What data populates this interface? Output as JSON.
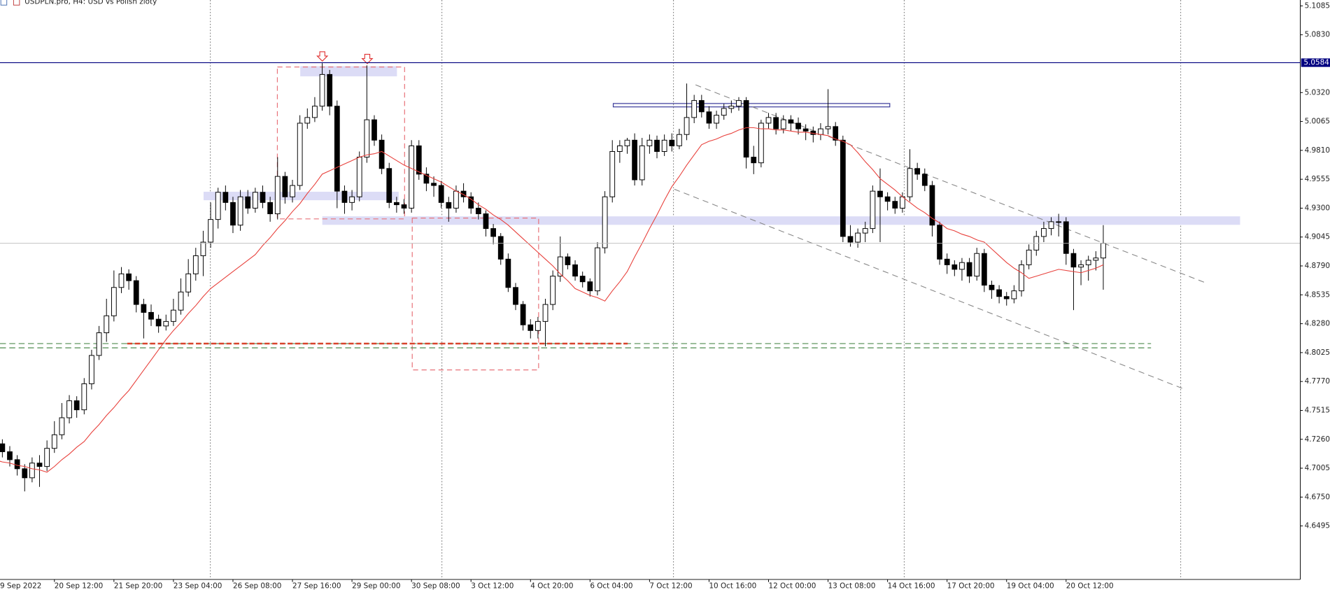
{
  "chart_data": {
    "type": "candlestick",
    "title": "USDPLN.pro, H4:  USD vs Polish zloty",
    "ylim": [
      4.6023,
      5.1137
    ],
    "yticks": [
      5.1085,
      {
        "value": 5.083,
        "label": "5.0830"
      },
      {
        "value": 5.032,
        "label": "5.0320"
      },
      5.0065,
      {
        "value": 4.981,
        "label": "4.9810"
      },
      4.9555,
      {
        "value": 4.93,
        "label": "4.9300"
      },
      4.9045,
      {
        "value": 4.879,
        "label": "4.8790"
      },
      4.8535,
      {
        "value": 4.828,
        "label": "4.8280"
      },
      4.8025,
      {
        "value": 4.777,
        "label": "4.7770"
      },
      4.7515,
      {
        "value": 4.726,
        "label": "4.7260"
      },
      4.7005,
      {
        "value": 4.675,
        "label": "4.6750"
      },
      4.6495
    ],
    "price_lines": [
      {
        "value": 5.0584,
        "color": "#000080"
      }
    ],
    "categories": [
      "9 Sep 2022",
      null,
      null,
      null,
      null,
      null,
      null,
      null,
      "20 Sep 12:00",
      null,
      null,
      null,
      null,
      null,
      null,
      null,
      "21 Sep 20:00",
      null,
      null,
      null,
      null,
      null,
      null,
      null,
      "23 Sep 04:00",
      null,
      null,
      null,
      null,
      null,
      null,
      null,
      "26 Sep 08:00",
      null,
      null,
      null,
      null,
      null,
      null,
      null,
      "27 Sep 16:00",
      null,
      null,
      null,
      null,
      null,
      null,
      null,
      "29 Sep 00:00",
      null,
      null,
      null,
      null,
      null,
      null,
      null,
      "30 Sep 08:00",
      null,
      null,
      null,
      null,
      null,
      null,
      null,
      "3 Oct 12:00",
      null,
      null,
      null,
      null,
      null,
      null,
      null,
      "4 Oct 20:00",
      null,
      null,
      null,
      null,
      null,
      null,
      null,
      "6 Oct 04:00",
      null,
      null,
      null,
      null,
      null,
      null,
      null,
      "7 Oct 12:00",
      null,
      null,
      null,
      null,
      null,
      null,
      null,
      "10 Oct 16:00",
      null,
      null,
      null,
      null,
      null,
      null,
      null,
      "12 Oct 00:00",
      null,
      null,
      null,
      null,
      null,
      null,
      null,
      "13 Oct 08:00",
      null,
      null,
      null,
      null,
      null,
      null,
      null,
      "14 Oct 16:00",
      null,
      null,
      null,
      null,
      null,
      null,
      null,
      "17 Oct 20:00",
      null,
      null,
      null,
      null,
      null,
      null,
      null,
      "19 Oct 04:00",
      null,
      null,
      null,
      null,
      null,
      null,
      null,
      "20 Oct 12:00",
      null,
      null,
      null,
      null,
      null
    ],
    "ohlc": [
      [
        4.728,
        4.732,
        4.716,
        4.722
      ],
      [
        4.722,
        4.726,
        4.71,
        4.715
      ],
      [
        4.715,
        4.72,
        4.702,
        4.708
      ],
      [
        4.708,
        4.712,
        4.694,
        4.7
      ],
      [
        4.7,
        4.704,
        4.68,
        4.692
      ],
      [
        4.692,
        4.71,
        4.688,
        4.705
      ],
      [
        4.705,
        4.712,
        4.684,
        4.702
      ],
      [
        4.702,
        4.725,
        4.698,
        4.718
      ],
      [
        4.718,
        4.742,
        4.714,
        4.73
      ],
      [
        4.73,
        4.758,
        4.726,
        4.745
      ],
      [
        4.745,
        4.765,
        4.74,
        4.76
      ],
      [
        4.76,
        4.764,
        4.745,
        4.752
      ],
      [
        4.752,
        4.78,
        4.748,
        4.775
      ],
      [
        4.775,
        4.805,
        4.77,
        4.8
      ],
      [
        4.8,
        4.826,
        4.796,
        4.82
      ],
      [
        4.82,
        4.85,
        4.812,
        4.835
      ],
      [
        4.835,
        4.875,
        4.83,
        4.86
      ],
      [
        4.86,
        4.878,
        4.855,
        4.872
      ],
      [
        4.872,
        4.876,
        4.858,
        4.866
      ],
      [
        4.866,
        4.87,
        4.838,
        4.845
      ],
      [
        4.845,
        4.85,
        4.815,
        4.838
      ],
      [
        4.838,
        4.845,
        4.826,
        4.832
      ],
      [
        4.832,
        4.836,
        4.82,
        4.826
      ],
      [
        4.826,
        4.836,
        4.822,
        4.83
      ],
      [
        4.83,
        4.85,
        4.826,
        4.84
      ],
      [
        4.84,
        4.868,
        4.836,
        4.856
      ],
      [
        4.856,
        4.885,
        4.852,
        4.872
      ],
      [
        4.872,
        4.895,
        4.866,
        4.888
      ],
      [
        4.888,
        4.91,
        4.87,
        4.9
      ],
      [
        4.9,
        4.935,
        4.895,
        4.92
      ],
      [
        4.92,
        4.948,
        4.912,
        4.944
      ],
      [
        4.944,
        4.95,
        4.928,
        4.935
      ],
      [
        4.935,
        4.94,
        4.908,
        4.915
      ],
      [
        4.915,
        4.946,
        4.91,
        4.94
      ],
      [
        4.94,
        4.946,
        4.925,
        4.93
      ],
      [
        4.93,
        4.948,
        4.926,
        4.944
      ],
      [
        4.944,
        4.95,
        4.93,
        4.935
      ],
      [
        4.935,
        4.94,
        4.918,
        4.925
      ],
      [
        4.925,
        4.975,
        4.92,
        4.958
      ],
      [
        4.958,
        4.962,
        4.934,
        4.94
      ],
      [
        4.94,
        4.955,
        4.935,
        4.95
      ],
      [
        4.95,
        5.012,
        4.946,
        5.005
      ],
      [
        5.005,
        5.018,
        5.0,
        5.01
      ],
      [
        5.01,
        5.028,
        5.006,
        5.02
      ],
      [
        5.02,
        5.058,
        5.016,
        5.048
      ],
      [
        5.048,
        5.052,
        5.012,
        5.02
      ],
      [
        5.02,
        5.025,
        4.93,
        4.945
      ],
      [
        4.945,
        4.95,
        4.925,
        4.935
      ],
      [
        4.935,
        4.946,
        4.928,
        4.94
      ],
      [
        4.94,
        4.98,
        4.936,
        4.975
      ],
      [
        4.975,
        5.056,
        4.97,
        5.008
      ],
      [
        5.008,
        5.012,
        4.985,
        4.99
      ],
      [
        4.99,
        4.995,
        4.96,
        4.965
      ],
      [
        4.965,
        4.97,
        4.93,
        4.935
      ],
      [
        4.935,
        4.94,
        4.926,
        4.933
      ],
      [
        4.933,
        4.938,
        4.925,
        4.93
      ],
      [
        4.93,
        4.99,
        4.926,
        4.985
      ],
      [
        4.985,
        4.99,
        4.955,
        4.96
      ],
      [
        4.96,
        4.966,
        4.945,
        4.952
      ],
      [
        4.952,
        4.958,
        4.94,
        4.95
      ],
      [
        4.95,
        4.954,
        4.93,
        4.935
      ],
      [
        4.935,
        4.94,
        4.918,
        4.93
      ],
      [
        4.93,
        4.95,
        4.926,
        4.945
      ],
      [
        4.945,
        4.952,
        4.935,
        4.94
      ],
      [
        4.94,
        4.944,
        4.925,
        4.93
      ],
      [
        4.93,
        4.935,
        4.92,
        4.925
      ],
      [
        4.925,
        4.928,
        4.905,
        4.912
      ],
      [
        4.912,
        4.916,
        4.898,
        4.905
      ],
      [
        4.905,
        4.908,
        4.88,
        4.885
      ],
      [
        4.885,
        4.89,
        4.856,
        4.86
      ],
      [
        4.86,
        4.864,
        4.84,
        4.845
      ],
      [
        4.845,
        4.848,
        4.822,
        4.827
      ],
      [
        4.827,
        4.832,
        4.815,
        4.822
      ],
      [
        4.822,
        4.834,
        4.815,
        4.83
      ],
      [
        4.83,
        4.85,
        4.808,
        4.845
      ],
      [
        4.845,
        4.875,
        4.84,
        4.87
      ],
      [
        4.87,
        4.905,
        4.865,
        4.887
      ],
      [
        4.887,
        4.89,
        4.876,
        4.88
      ],
      [
        4.88,
        4.884,
        4.866,
        4.87
      ],
      [
        4.87,
        4.874,
        4.86,
        4.865
      ],
      [
        4.865,
        4.868,
        4.852,
        4.857
      ],
      [
        4.857,
        4.9,
        4.853,
        4.895
      ],
      [
        4.895,
        4.945,
        4.89,
        4.94
      ],
      [
        4.94,
        4.99,
        4.935,
        4.98
      ],
      [
        4.98,
        4.99,
        4.97,
        4.985
      ],
      [
        4.985,
        4.992,
        4.978,
        4.99
      ],
      [
        4.99,
        4.996,
        4.95,
        4.955
      ],
      [
        4.955,
        4.992,
        4.95,
        4.985
      ],
      [
        4.985,
        4.995,
        4.978,
        4.99
      ],
      [
        4.99,
        4.994,
        4.974,
        4.98
      ],
      [
        4.98,
        4.995,
        4.976,
        4.99
      ],
      [
        4.99,
        4.996,
        4.98,
        4.985
      ],
      [
        4.985,
        5.0,
        4.982,
        4.995
      ],
      [
        4.995,
        5.04,
        4.99,
        5.01
      ],
      [
        5.01,
        5.03,
        5.005,
        5.025
      ],
      [
        5.025,
        5.03,
        5.01,
        5.015
      ],
      [
        5.015,
        5.02,
        5.0,
        5.005
      ],
      [
        5.005,
        5.016,
        5.0,
        5.012
      ],
      [
        5.012,
        5.022,
        5.008,
        5.018
      ],
      [
        5.018,
        5.025,
        5.014,
        5.02
      ],
      [
        5.02,
        5.028,
        5.016,
        5.025
      ],
      [
        5.025,
        5.028,
        4.965,
        4.975
      ],
      [
        4.975,
        4.985,
        4.96,
        4.97
      ],
      [
        4.97,
        5.008,
        4.966,
        5.005
      ],
      [
        5.005,
        5.014,
        5.0,
        5.01
      ],
      [
        5.01,
        5.014,
        4.995,
        5.0
      ],
      [
        5.0,
        5.012,
        4.996,
        5.008
      ],
      [
        5.008,
        5.012,
        4.998,
        5.005
      ],
      [
        5.005,
        5.01,
        4.995,
        5.0
      ],
      [
        5.0,
        5.004,
        4.99,
        4.998
      ],
      [
        4.998,
        5.002,
        4.988,
        4.995
      ],
      [
        4.995,
        5.005,
        4.99,
        5.0
      ],
      [
        5.0,
        5.035,
        4.995,
        5.002
      ],
      [
        5.002,
        5.006,
        4.985,
        4.99
      ],
      [
        4.99,
        4.994,
        4.9,
        4.905
      ],
      [
        4.905,
        4.915,
        4.896,
        4.9
      ],
      [
        4.9,
        4.912,
        4.895,
        4.908
      ],
      [
        4.908,
        4.918,
        4.9,
        4.912
      ],
      [
        4.912,
        4.95,
        4.908,
        4.945
      ],
      [
        4.945,
        4.965,
        4.9,
        4.94
      ],
      [
        4.94,
        4.944,
        4.928,
        4.936
      ],
      [
        4.936,
        4.94,
        4.925,
        4.93
      ],
      [
        4.93,
        4.944,
        4.926,
        4.94
      ],
      [
        4.94,
        4.982,
        4.936,
        4.965
      ],
      [
        4.965,
        4.97,
        4.955,
        4.96
      ],
      [
        4.96,
        4.965,
        4.945,
        4.95
      ],
      [
        4.95,
        4.954,
        4.905,
        4.915
      ],
      [
        4.915,
        4.918,
        4.88,
        4.885
      ],
      [
        4.885,
        4.89,
        4.872,
        4.88
      ],
      [
        4.88,
        4.884,
        4.87,
        4.876
      ],
      [
        4.876,
        4.886,
        4.866,
        4.882
      ],
      [
        4.882,
        4.886,
        4.864,
        4.87
      ],
      [
        4.87,
        4.895,
        4.866,
        4.89
      ],
      [
        4.89,
        4.894,
        4.856,
        4.862
      ],
      [
        4.862,
        4.866,
        4.85,
        4.858
      ],
      [
        4.858,
        4.862,
        4.846,
        4.852
      ],
      [
        4.852,
        4.856,
        4.844,
        4.85
      ],
      [
        4.85,
        4.862,
        4.846,
        4.857
      ],
      [
        4.857,
        4.884,
        4.852,
        4.88
      ],
      [
        4.88,
        4.898,
        4.876,
        4.893
      ],
      [
        4.893,
        4.91,
        4.888,
        4.905
      ],
      [
        4.905,
        4.918,
        4.9,
        4.912
      ],
      [
        4.912,
        4.922,
        4.906,
        4.918
      ],
      [
        4.918,
        4.925,
        4.905,
        4.918
      ],
      [
        4.918,
        4.922,
        4.88,
        4.89
      ],
      [
        4.89,
        4.894,
        4.84,
        4.878
      ],
      [
        4.878,
        4.884,
        4.862,
        4.88
      ],
      [
        4.88,
        4.888,
        4.866,
        4.884
      ],
      [
        4.884,
        4.892,
        4.875,
        4.886
      ],
      [
        4.886,
        4.915,
        4.858,
        4.899
      ]
    ],
    "lines": [
      {
        "color": "#e8413c",
        "values": [
          4.708,
          4.706,
          4.705,
          4.703,
          4.702,
          4.7,
          4.699,
          4.697,
          4.702,
          4.708,
          4.713,
          4.719,
          4.724,
          4.732,
          4.739,
          4.747,
          4.754,
          4.762,
          4.769,
          4.778,
          4.787,
          4.796,
          4.805,
          4.814,
          4.822,
          4.829,
          4.837,
          4.844,
          4.852,
          4.859,
          4.864,
          4.869,
          4.874,
          4.879,
          4.884,
          4.889,
          4.897,
          4.904,
          4.912,
          4.919,
          4.927,
          4.934,
          4.943,
          4.951,
          4.96,
          4.963,
          4.966,
          4.969,
          4.972,
          4.975,
          4.977,
          4.978,
          4.98,
          4.976,
          4.972,
          4.968,
          4.965,
          4.962,
          4.959,
          4.956,
          4.953,
          4.949,
          4.945,
          4.942,
          4.938,
          4.933,
          4.929,
          4.924,
          4.92,
          4.915,
          4.909,
          4.903,
          4.897,
          4.891,
          4.885,
          4.879,
          4.872,
          4.866,
          4.859,
          4.856,
          4.853,
          4.851,
          4.848,
          4.857,
          4.865,
          4.874,
          4.887,
          4.899,
          4.912,
          4.924,
          4.937,
          4.949,
          4.958,
          4.968,
          4.977,
          4.986,
          4.989,
          4.991,
          4.994,
          4.996,
          4.999,
          5.001,
          5.001,
          5.0,
          5.0,
          4.999,
          4.999,
          4.998,
          4.997,
          4.997,
          4.996,
          4.995,
          4.994,
          4.991,
          4.989,
          4.986,
          4.979,
          4.971,
          4.964,
          4.956,
          4.951,
          4.946,
          4.94,
          4.935,
          4.93,
          4.926,
          4.921,
          4.917,
          4.912,
          4.91,
          4.907,
          4.905,
          4.902,
          4.9,
          4.894,
          4.888,
          4.882,
          4.877,
          4.873,
          4.868,
          4.87,
          4.872,
          4.874,
          4.876,
          4.875,
          4.874,
          4.873,
          4.875,
          4.877,
          4.88
        ]
      }
    ]
  }
}
